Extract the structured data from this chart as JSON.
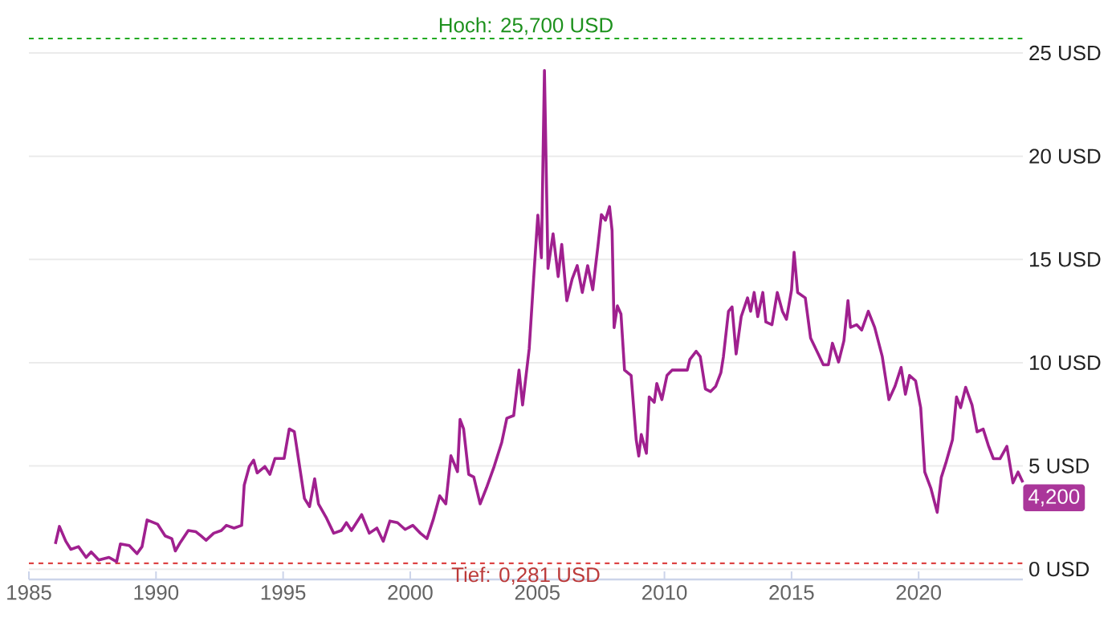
{
  "chart_data": {
    "type": "line",
    "xlim": [
      1985,
      2024.1
    ],
    "ylim": [
      -0.5,
      25.7
    ],
    "xticks": [
      1985,
      1990,
      1995,
      2000,
      2005,
      2010,
      2015,
      2020
    ],
    "yticks": [
      {
        "value": 0,
        "label": "0 USD"
      },
      {
        "value": 5,
        "label": "5 USD"
      },
      {
        "value": 10,
        "label": "10 USD"
      },
      {
        "value": 15,
        "label": "15 USD"
      },
      {
        "value": 20,
        "label": "20 USD"
      },
      {
        "value": 25,
        "label": "25 USD"
      }
    ],
    "grid": "y",
    "series": [
      {
        "color": "#a0208f",
        "x": [
          1986.04,
          1986.2,
          1986.45,
          1986.65,
          1986.95,
          1987.25,
          1987.45,
          1987.75,
          1988.15,
          1988.45,
          1988.6,
          1988.95,
          1989.25,
          1989.45,
          1989.65,
          1990.06,
          1990.36,
          1990.62,
          1990.76,
          1990.96,
          1991.27,
          1991.57,
          1991.77,
          1991.97,
          1992.27,
          1992.57,
          1992.77,
          1993.07,
          1993.37,
          1993.47,
          1993.67,
          1993.84,
          1993.98,
          1994.28,
          1994.48,
          1994.68,
          1995.04,
          1995.24,
          1995.44,
          1995.68,
          1995.84,
          1996.04,
          1996.24,
          1996.39,
          1996.69,
          1996.99,
          1997.29,
          1997.49,
          1997.69,
          1998.09,
          1998.39,
          1998.69,
          1998.94,
          1999.2,
          1999.5,
          1999.8,
          2000.1,
          2000.4,
          2000.66,
          2000.9,
          2001.16,
          2001.4,
          2001.6,
          2001.86,
          2001.96,
          2002.1,
          2002.3,
          2002.5,
          2002.75,
          2003.0,
          2003.3,
          2003.6,
          2003.8,
          2004.07,
          2004.28,
          2004.42,
          2004.68,
          2004.88,
          2005.02,
          2005.16,
          2005.28,
          2005.42,
          2005.62,
          2005.82,
          2005.96,
          2006.16,
          2006.37,
          2006.57,
          2006.77,
          2006.98,
          2007.18,
          2007.38,
          2007.52,
          2007.68,
          2007.84,
          2007.94,
          2008.02,
          2008.15,
          2008.29,
          2008.43,
          2008.69,
          2008.89,
          2008.99,
          2009.09,
          2009.29,
          2009.4,
          2009.6,
          2009.7,
          2009.9,
          2010.1,
          2010.3,
          2010.6,
          2010.9,
          2011.0,
          2011.25,
          2011.41,
          2011.61,
          2011.81,
          2012.02,
          2012.22,
          2012.32,
          2012.52,
          2012.66,
          2012.82,
          2013.02,
          2013.27,
          2013.39,
          2013.53,
          2013.67,
          2013.87,
          2013.99,
          2014.23,
          2014.44,
          2014.64,
          2014.8,
          2015.0,
          2015.1,
          2015.24,
          2015.54,
          2015.75,
          2016.05,
          2016.25,
          2016.45,
          2016.61,
          2016.85,
          2017.06,
          2017.22,
          2017.32,
          2017.56,
          2017.76,
          2018.02,
          2018.27,
          2018.57,
          2018.83,
          2019.07,
          2019.31,
          2019.48,
          2019.64,
          2019.88,
          2020.08,
          2020.24,
          2020.48,
          2020.73,
          2020.89,
          2021.09,
          2021.33,
          2021.49,
          2021.65,
          2021.85,
          2022.1,
          2022.3,
          2022.54,
          2022.74,
          2022.94,
          2023.2,
          2023.47,
          2023.71,
          2023.91,
          2024.1
        ],
        "values": [
          1.22,
          2.07,
          1.35,
          0.96,
          1.09,
          0.57,
          0.83,
          0.44,
          0.57,
          0.36,
          1.22,
          1.14,
          0.75,
          1.09,
          2.38,
          2.18,
          1.61,
          1.48,
          0.88,
          1.3,
          1.87,
          1.81,
          1.61,
          1.4,
          1.74,
          1.87,
          2.12,
          1.99,
          2.12,
          4.07,
          4.97,
          5.28,
          4.66,
          4.97,
          4.59,
          5.36,
          5.36,
          6.79,
          6.66,
          4.72,
          3.42,
          3.03,
          4.38,
          3.16,
          2.51,
          1.74,
          1.87,
          2.25,
          1.87,
          2.64,
          1.74,
          1.99,
          1.35,
          2.33,
          2.25,
          1.92,
          2.12,
          1.74,
          1.48,
          2.38,
          3.55,
          3.16,
          5.49,
          4.72,
          7.25,
          6.79,
          4.59,
          4.46,
          3.16,
          3.94,
          4.97,
          6.14,
          7.31,
          7.44,
          9.64,
          7.95,
          10.67,
          14.56,
          17.15,
          15.08,
          24.15,
          14.56,
          16.24,
          14.17,
          15.73,
          13.0,
          14.05,
          14.7,
          13.4,
          14.7,
          13.53,
          15.6,
          17.17,
          16.9,
          17.56,
          16.4,
          11.7,
          12.75,
          12.36,
          9.64,
          9.38,
          6.26,
          5.48,
          6.52,
          5.61,
          8.34,
          8.08,
          8.99,
          8.21,
          9.38,
          9.64,
          9.64,
          9.64,
          10.16,
          10.55,
          10.29,
          8.73,
          8.6,
          8.86,
          9.51,
          10.29,
          12.49,
          12.7,
          10.42,
          12.23,
          13.14,
          12.49,
          13.4,
          12.23,
          13.4,
          11.97,
          11.84,
          13.4,
          12.49,
          12.1,
          13.53,
          15.35,
          13.4,
          13.14,
          11.19,
          10.42,
          9.9,
          9.9,
          10.94,
          10.03,
          11.06,
          13.01,
          11.71,
          11.84,
          11.58,
          12.49,
          11.71,
          10.29,
          8.21,
          8.86,
          9.77,
          8.47,
          9.38,
          9.12,
          7.82,
          4.7,
          3.92,
          2.75,
          4.44,
          5.22,
          6.26,
          8.34,
          7.82,
          8.81,
          7.95,
          6.65,
          6.78,
          6.0,
          5.35,
          5.35,
          5.95,
          4.18,
          4.7,
          4.2
        ]
      }
    ],
    "ref_lines": [
      {
        "axis": "y",
        "value": 25.7,
        "label": "Hoch: 25,700 USD",
        "color": "#22aa22",
        "line_style": "dashed"
      },
      {
        "axis": "y",
        "value": 0.281,
        "label": "Tief: 0,281 USD",
        "color": "#dd4444",
        "line_style": "dashed"
      }
    ],
    "annotations": [
      {
        "text": "4,200",
        "x": 2024.1,
        "y": 4.2
      }
    ]
  }
}
